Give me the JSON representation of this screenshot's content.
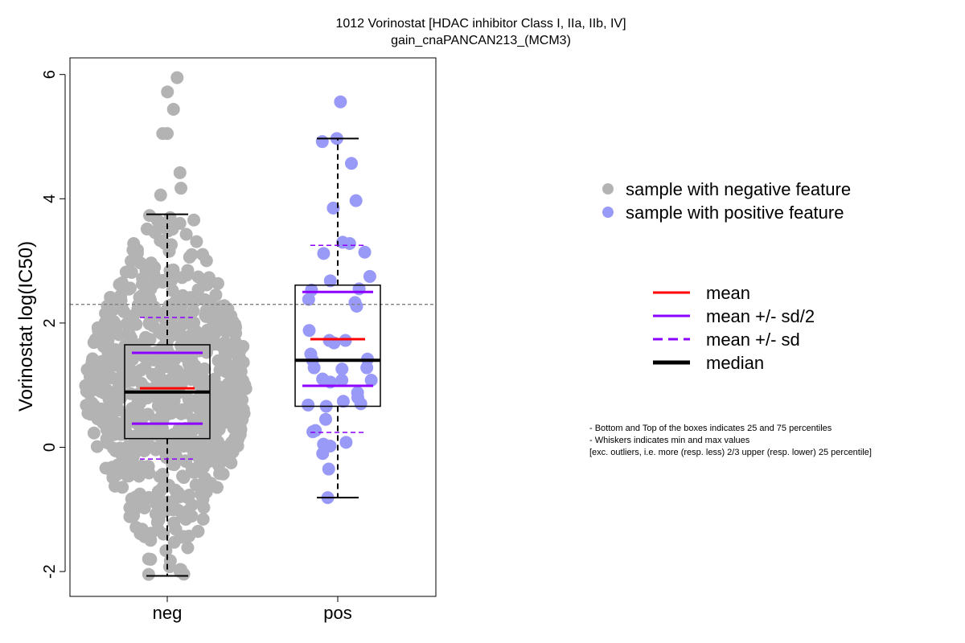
{
  "title_line1": "1012 Vorinostat [HDAC inhibitor Class I, IIa, IIb, IV]",
  "title_line2": "gain_cnaPANCAN213_(MCM3)",
  "ylabel": "Vorinostat log(IC50)",
  "legend_points": {
    "neg": "sample with negative feature",
    "pos": "sample with positive feature"
  },
  "legend_lines": {
    "mean": "mean",
    "sd2": "mean +/- sd/2",
    "sd": "mean +/- sd",
    "median": "median"
  },
  "notes": [
    "- Bottom and Top of the boxes indicates 25 and 75 percentiles",
    "- Whiskers indicates min and max values",
    "[exc. outliers, i.e. more (resp. less) 2/3 upper (resp. lower) 25 percentile]"
  ],
  "colors": {
    "neg_point": "#b3b3b3",
    "pos_point": "#9999f7",
    "mean": "#ff0000",
    "sd": "#8b00ff",
    "median": "#000000",
    "threshold": "#808080"
  },
  "chart_data": {
    "type": "box",
    "categories": [
      "neg",
      "pos"
    ],
    "yticks": [
      -2,
      0,
      2,
      4,
      6
    ],
    "ylim": [
      -2.4,
      6.3
    ],
    "threshold": 2.3,
    "groups": [
      {
        "name": "neg",
        "whisker_low": -2.07,
        "q1": 0.14,
        "median": 0.89,
        "q3": 1.65,
        "whisker_high": 3.75,
        "mean": 0.95,
        "mean_minus_sd2": 0.38,
        "mean_plus_sd2": 1.52,
        "mean_minus_sd": -0.19,
        "mean_plus_sd": 2.09,
        "n_points": 820,
        "outliers": [
          5.95,
          5.72,
          5.44,
          5.05,
          5.05,
          4.42,
          4.17,
          4.06
        ]
      },
      {
        "name": "pos",
        "whisker_low": -0.81,
        "q1": 0.66,
        "median": 1.4,
        "q3": 2.61,
        "whisker_high": 4.97,
        "mean": 1.74,
        "mean_minus_sd2": 0.99,
        "mean_plus_sd2": 2.5,
        "mean_minus_sd": 0.24,
        "mean_plus_sd": 3.25,
        "points": [
          5.56,
          4.97,
          4.92,
          4.57,
          3.97,
          3.85,
          3.3,
          3.28,
          3.14,
          3.12,
          2.75,
          2.68,
          2.55,
          2.53,
          2.38,
          2.33,
          2.27,
          1.88,
          1.72,
          1.72,
          1.68,
          1.5,
          1.42,
          1.4,
          1.28,
          1.28,
          1.26,
          1.1,
          1.08,
          1.08,
          1.05,
          0.88,
          0.8,
          0.74,
          0.7,
          0.68,
          0.66,
          0.45,
          0.27,
          0.25,
          0.08,
          0.05,
          0.02,
          -0.1,
          -0.35,
          -0.81
        ]
      }
    ]
  }
}
